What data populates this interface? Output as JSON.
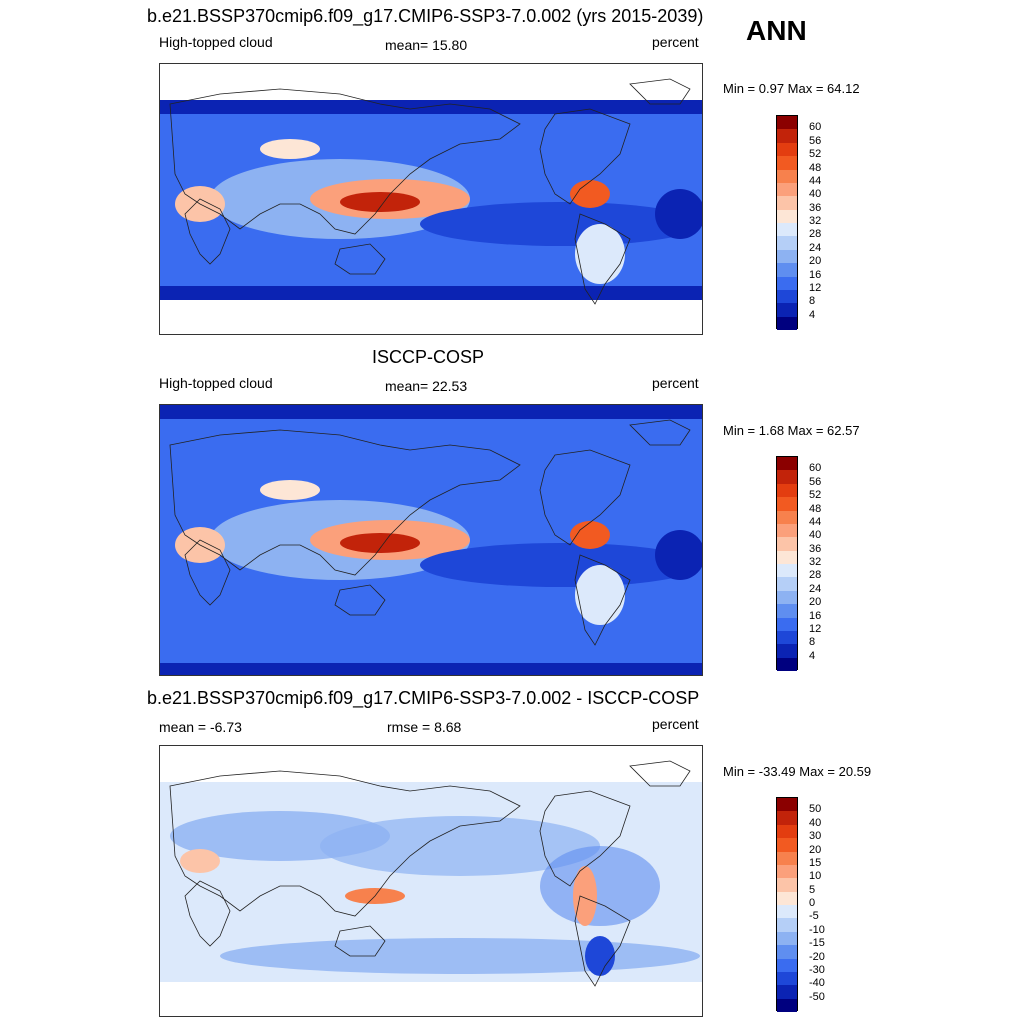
{
  "season": "ANN",
  "panels": [
    {
      "title": "b.e21.BSSP370cmip6.f09_g17.CMIP6-SSP3-7.0.002 (yrs 2015-2039)",
      "left_text": "High-topped cloud",
      "center_text": "mean=  15.80",
      "right_text": "percent",
      "minmax": "Min =   0.97 Max =  64.12",
      "kind": "model"
    },
    {
      "title": "ISCCP-COSP",
      "left_text": "High-topped cloud",
      "center_text": "mean=  22.53",
      "right_text": "percent",
      "minmax": "Min =   1.68 Max =  62.57",
      "kind": "obs"
    },
    {
      "title": "b.e21.BSSP370cmip6.f09_g17.CMIP6-SSP3-7.0.002 - ISCCP-COSP",
      "left_text": "mean =  -6.73",
      "center_text": "rmse =   8.68",
      "right_text": "percent",
      "minmax": "Min = -33.49 Max =  20.59",
      "kind": "diff"
    }
  ],
  "colorbars": {
    "abs": {
      "labels": [
        "60",
        "56",
        "52",
        "48",
        "44",
        "40",
        "36",
        "32",
        "28",
        "24",
        "20",
        "16",
        "12",
        "8",
        "4"
      ],
      "colors": [
        "#8b0000",
        "#c2230a",
        "#e33d10",
        "#f25a21",
        "#f7814d",
        "#fba07b",
        "#fcc4a8",
        "#fde6d6",
        "#dce9fb",
        "#b5cff7",
        "#8db2f2",
        "#5f8ef0",
        "#3a6cf0",
        "#1e47d8",
        "#0b23b3",
        "#00007f"
      ]
    },
    "diff": {
      "labels": [
        "50",
        "40",
        "30",
        "20",
        "15",
        "10",
        "5",
        "0",
        "-5",
        "-10",
        "-15",
        "-20",
        "-30",
        "-40",
        "-50"
      ],
      "colors": [
        "#8b0000",
        "#c2230a",
        "#e33d10",
        "#f25a21",
        "#f7814d",
        "#fba07b",
        "#fcc4a8",
        "#fde6d6",
        "#dce9fb",
        "#b5cff7",
        "#8db2f2",
        "#5f8ef0",
        "#3a6cf0",
        "#1e47d8",
        "#0b23b3",
        "#00007f"
      ]
    }
  }
}
